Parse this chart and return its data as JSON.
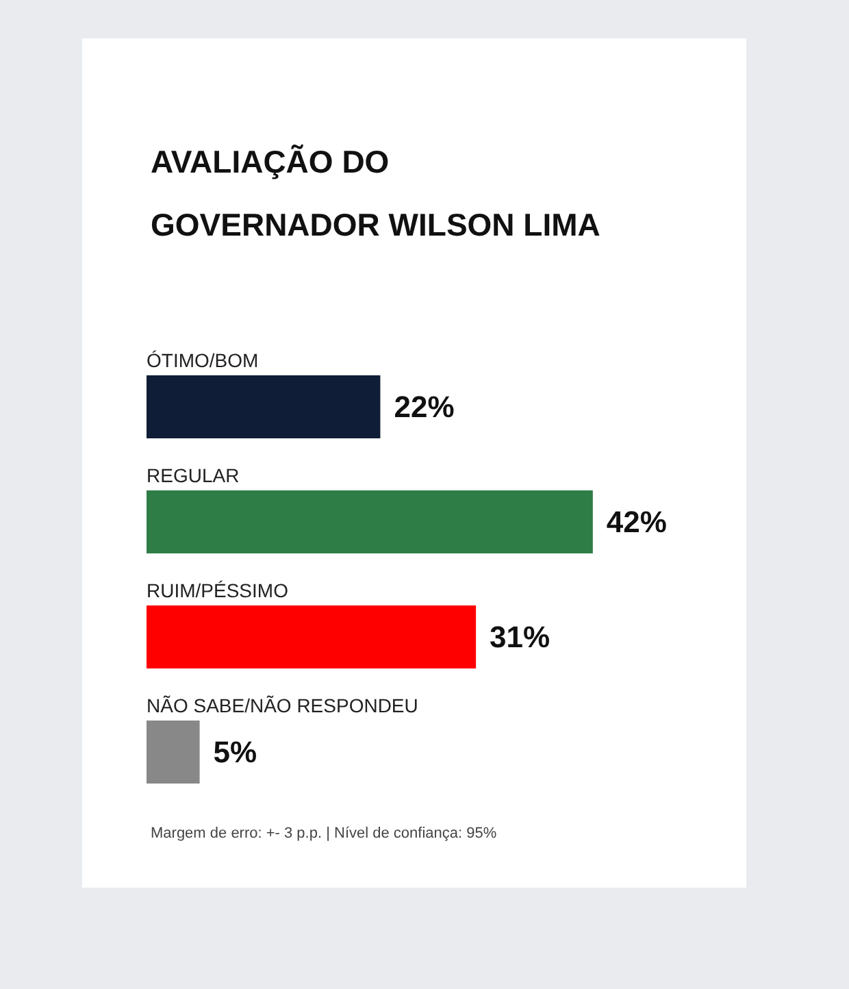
{
  "chart_data": {
    "type": "bar",
    "orientation": "horizontal",
    "title": "AVALIAÇÃO DO GOVERNADOR WILSON LIMA",
    "categories": [
      "ÓTIMO/BOM",
      "REGULAR",
      "RUIM/PÉSSIMO",
      "NÃO SABE/NÃO RESPONDEU"
    ],
    "values": [
      22,
      42,
      31,
      5
    ],
    "colors": [
      "#0f1e36",
      "#2e7d46",
      "#ff0000",
      "#888888"
    ],
    "value_labels": [
      "22%",
      "42%",
      "31%",
      "5%"
    ],
    "annotations": [
      "Margem de erro: +- 3 p.p. | Nível de confiança: 95%"
    ]
  }
}
